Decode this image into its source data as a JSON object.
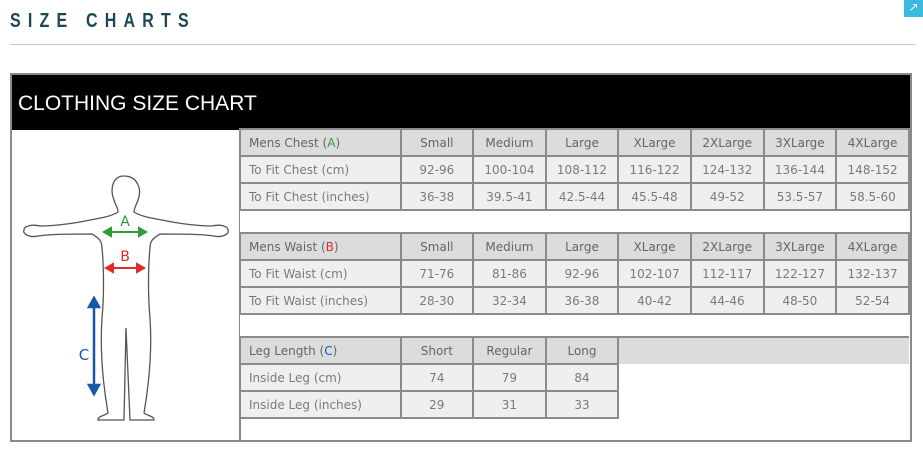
{
  "page": {
    "title": "SIZE CHARTS",
    "corner_icon": "arrow-icon"
  },
  "chart": {
    "title": "CLOTHING SIZE CHART",
    "figure": {
      "labels": [
        "A",
        "B",
        "C"
      ],
      "colors": {
        "A": "#2f9a3a",
        "B": "#e02b2b",
        "C": "#1858a8"
      }
    },
    "chest": {
      "header": "Mens Chest (",
      "key": "A",
      "sizes": [
        "Small",
        "Medium",
        "Large",
        "XLarge",
        "2XLarge",
        "3XLarge",
        "4XLarge"
      ],
      "rows": [
        {
          "label": "To Fit Chest (cm)",
          "values": [
            "92-96",
            "100-104",
            "108-112",
            "116-122",
            "124-132",
            "136-144",
            "148-152"
          ]
        },
        {
          "label": "To Fit Chest (inches)",
          "values": [
            "36-38",
            "39.5-41",
            "42.5-44",
            "45.5-48",
            "49-52",
            "53.5-57",
            "58.5-60"
          ]
        }
      ]
    },
    "waist": {
      "header": "Mens Waist (",
      "key": "B",
      "sizes": [
        "Small",
        "Medium",
        "Large",
        "XLarge",
        "2XLarge",
        "3XLarge",
        "4XLarge"
      ],
      "rows": [
        {
          "label": "To Fit Waist (cm)",
          "values": [
            "71-76",
            "81-86",
            "92-96",
            "102-107",
            "112-117",
            "122-127",
            "132-137"
          ]
        },
        {
          "label": "To Fit Waist (inches)",
          "values": [
            "28-30",
            "32-34",
            "36-38",
            "40-42",
            "44-46",
            "48-50",
            "52-54"
          ]
        }
      ]
    },
    "leg": {
      "header": "Leg Length (",
      "key": "C",
      "sizes": [
        "Short",
        "Regular",
        "Long"
      ],
      "rows": [
        {
          "label": "Inside Leg (cm)",
          "values": [
            "74",
            "79",
            "84"
          ]
        },
        {
          "label": "Inside Leg (inches)",
          "values": [
            "29",
            "31",
            "33"
          ]
        }
      ]
    }
  }
}
